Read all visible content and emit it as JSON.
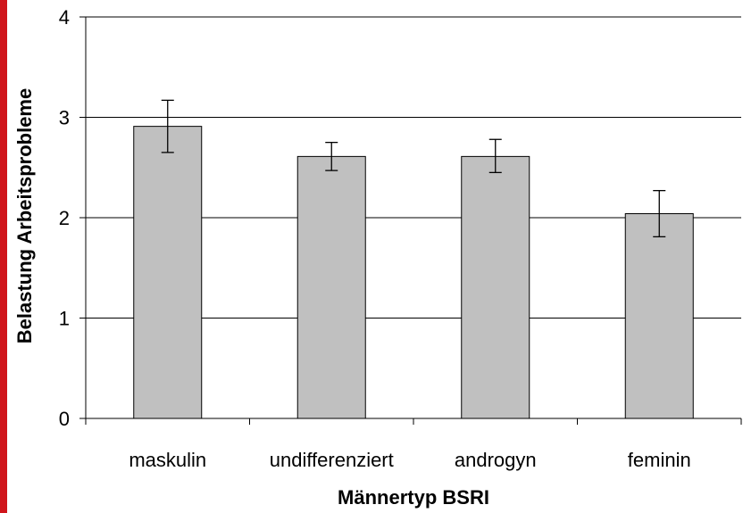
{
  "chart_data": {
    "type": "bar",
    "categories": [
      "maskulin",
      "undifferenziert",
      "androgyn",
      "feminin"
    ],
    "values": [
      2.91,
      2.61,
      2.61,
      2.04
    ],
    "error_bars": [
      {
        "low": 2.65,
        "high": 3.17
      },
      {
        "low": 2.47,
        "high": 2.75
      },
      {
        "low": 2.45,
        "high": 2.78
      },
      {
        "low": 1.81,
        "high": 2.27
      }
    ],
    "xlabel": "Männertyp BSRI",
    "ylabel": "Belastung Arbeitsprobleme",
    "ylim": [
      0,
      4
    ],
    "yticks": [
      "0",
      "1",
      "2",
      "3",
      "4"
    ],
    "grid": "horizontal",
    "legend": "none"
  },
  "colors": {
    "bar_fill": "#c0c0c0",
    "bar_stroke": "#000000",
    "grid": "#000000",
    "accent_left": "#d0151b"
  }
}
